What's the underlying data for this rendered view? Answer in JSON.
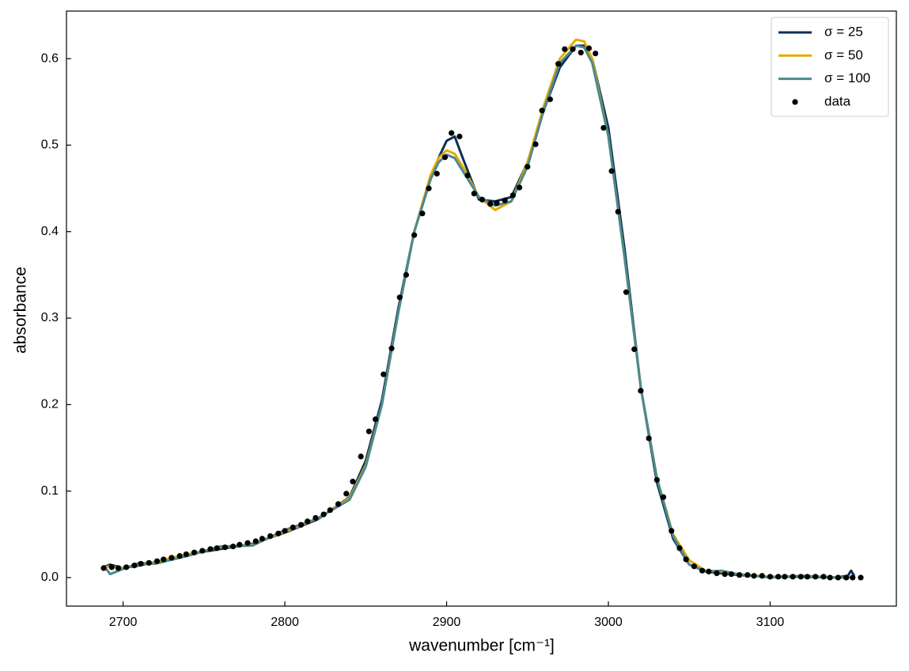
{
  "chart_data": {
    "type": "line",
    "xlabel": "wavenumber [cm⁻¹]",
    "ylabel": "absorbance",
    "xlim": [
      2665,
      3178
    ],
    "ylim": [
      -0.033,
      0.655
    ],
    "xticks": [
      2700,
      2800,
      2900,
      3000,
      3100
    ],
    "yticks": [
      {
        "value": 0,
        "label": "0.0"
      },
      0.1,
      0.2,
      0.3,
      0.4,
      0.5,
      0.6
    ],
    "tick_direction": "in",
    "grid": false,
    "legend": "upper right",
    "series": [
      {
        "name": "σ = 25",
        "color": "#0c2f55",
        "mode": "lines",
        "x": [
          2688,
          2692,
          2700,
          2710,
          2720,
          2740,
          2760,
          2780,
          2800,
          2820,
          2840,
          2850,
          2860,
          2870,
          2880,
          2890,
          2895,
          2900,
          2905,
          2910,
          2920,
          2930,
          2940,
          2950,
          2960,
          2970,
          2980,
          2985,
          2990,
          3000,
          3010,
          3020,
          3030,
          3040,
          3050,
          3060,
          3070,
          3080,
          3100,
          3120,
          3140,
          3148,
          3150,
          3152
        ],
        "values": [
          0.012,
          0.015,
          0.011,
          0.014,
          0.018,
          0.027,
          0.033,
          0.039,
          0.052,
          0.067,
          0.093,
          0.135,
          0.205,
          0.31,
          0.4,
          0.46,
          0.485,
          0.505,
          0.51,
          0.485,
          0.437,
          0.435,
          0.44,
          0.48,
          0.54,
          0.59,
          0.615,
          0.615,
          0.6,
          0.52,
          0.38,
          0.22,
          0.11,
          0.045,
          0.015,
          0.007,
          0.005,
          0.003,
          0.001,
          0.001,
          0.0,
          0.002,
          0.008,
          0.002
        ]
      },
      {
        "name": "σ = 50",
        "color": "#e8a800",
        "mode": "lines",
        "x": [
          2688,
          2692,
          2700,
          2710,
          2720,
          2740,
          2760,
          2780,
          2800,
          2820,
          2840,
          2850,
          2860,
          2870,
          2880,
          2890,
          2895,
          2900,
          2905,
          2910,
          2920,
          2930,
          2940,
          2950,
          2960,
          2970,
          2980,
          2985,
          2990,
          3000,
          3010,
          3020,
          3030,
          3040,
          3050,
          3060,
          3070,
          3080,
          3100,
          3120,
          3140,
          3148,
          3150,
          3152
        ],
        "values": [
          0.012,
          0.013,
          0.011,
          0.015,
          0.018,
          0.027,
          0.035,
          0.038,
          0.053,
          0.068,
          0.092,
          0.13,
          0.2,
          0.305,
          0.4,
          0.465,
          0.485,
          0.494,
          0.49,
          0.475,
          0.44,
          0.425,
          0.435,
          0.48,
          0.545,
          0.6,
          0.622,
          0.62,
          0.6,
          0.51,
          0.37,
          0.22,
          0.115,
          0.05,
          0.02,
          0.008,
          0.007,
          0.004,
          0.001,
          0.002,
          0.0,
          0.0,
          0.0,
          0.001
        ]
      },
      {
        "name": "σ = 100",
        "color": "#4a8b8f",
        "mode": "lines",
        "x": [
          2688,
          2692,
          2700,
          2710,
          2720,
          2740,
          2760,
          2780,
          2800,
          2820,
          2840,
          2850,
          2860,
          2870,
          2880,
          2890,
          2895,
          2900,
          2905,
          2910,
          2920,
          2930,
          2940,
          2950,
          2960,
          2970,
          2980,
          2985,
          2990,
          3000,
          3010,
          3020,
          3030,
          3040,
          3050,
          3060,
          3070,
          3080,
          3100,
          3120,
          3140,
          3148,
          3150,
          3152
        ],
        "values": [
          0.014,
          0.004,
          0.01,
          0.017,
          0.016,
          0.025,
          0.036,
          0.037,
          0.055,
          0.068,
          0.09,
          0.128,
          0.2,
          0.305,
          0.4,
          0.46,
          0.48,
          0.489,
          0.485,
          0.47,
          0.44,
          0.43,
          0.435,
          0.475,
          0.54,
          0.595,
          0.615,
          0.613,
          0.595,
          0.51,
          0.37,
          0.22,
          0.115,
          0.048,
          0.015,
          0.007,
          0.008,
          0.004,
          0.0,
          0.002,
          0.0,
          0.0,
          0.0,
          0.0
        ]
      },
      {
        "name": "data",
        "color": "#000000",
        "mode": "markers",
        "x": [
          2688,
          2693,
          2697,
          2702,
          2707,
          2711,
          2716,
          2721,
          2725,
          2730,
          2735,
          2739,
          2744,
          2749,
          2754,
          2758,
          2763,
          2768,
          2772,
          2777,
          2782,
          2786,
          2791,
          2796,
          2800,
          2805,
          2810,
          2814,
          2819,
          2824,
          2828,
          2833,
          2838,
          2842,
          2847,
          2852,
          2856,
          2861,
          2866,
          2871,
          2875,
          2880,
          2885,
          2889,
          2894,
          2899,
          2903,
          2908,
          2913,
          2917,
          2922,
          2927,
          2931,
          2936,
          2941,
          2945,
          2950,
          2955,
          2959,
          2964,
          2969,
          2973,
          2978,
          2983,
          2988,
          2992,
          2997,
          3002,
          3006,
          3011,
          3016,
          3020,
          3025,
          3030,
          3034,
          3039,
          3044,
          3048,
          3053,
          3058,
          3062,
          3067,
          3072,
          3076,
          3081,
          3086,
          3090,
          3095,
          3100,
          3105,
          3109,
          3114,
          3119,
          3123,
          3128,
          3133,
          3137,
          3142,
          3147,
          3151,
          3156
        ],
        "values": [
          0.011,
          0.012,
          0.011,
          0.012,
          0.014,
          0.016,
          0.017,
          0.019,
          0.021,
          0.023,
          0.025,
          0.027,
          0.029,
          0.031,
          0.033,
          0.034,
          0.035,
          0.036,
          0.038,
          0.04,
          0.042,
          0.045,
          0.048,
          0.051,
          0.054,
          0.058,
          0.061,
          0.065,
          0.069,
          0.073,
          0.078,
          0.085,
          0.097,
          0.111,
          0.14,
          0.169,
          0.183,
          0.235,
          0.265,
          0.324,
          0.35,
          0.396,
          0.421,
          0.45,
          0.467,
          0.486,
          0.514,
          0.51,
          0.465,
          0.444,
          0.437,
          0.432,
          0.433,
          0.436,
          0.442,
          0.451,
          0.475,
          0.501,
          0.54,
          0.553,
          0.594,
          0.611,
          0.611,
          0.607,
          0.612,
          0.606,
          0.52,
          0.47,
          0.423,
          0.33,
          0.264,
          0.216,
          0.161,
          0.113,
          0.093,
          0.054,
          0.034,
          0.021,
          0.013,
          0.008,
          0.007,
          0.005,
          0.004,
          0.004,
          0.003,
          0.003,
          0.002,
          0.002,
          0.001,
          0.001,
          0.001,
          0.001,
          0.001,
          0.001,
          0.001,
          0.001,
          0.0,
          0.0,
          0.0,
          0.0,
          0.0
        ]
      }
    ]
  }
}
